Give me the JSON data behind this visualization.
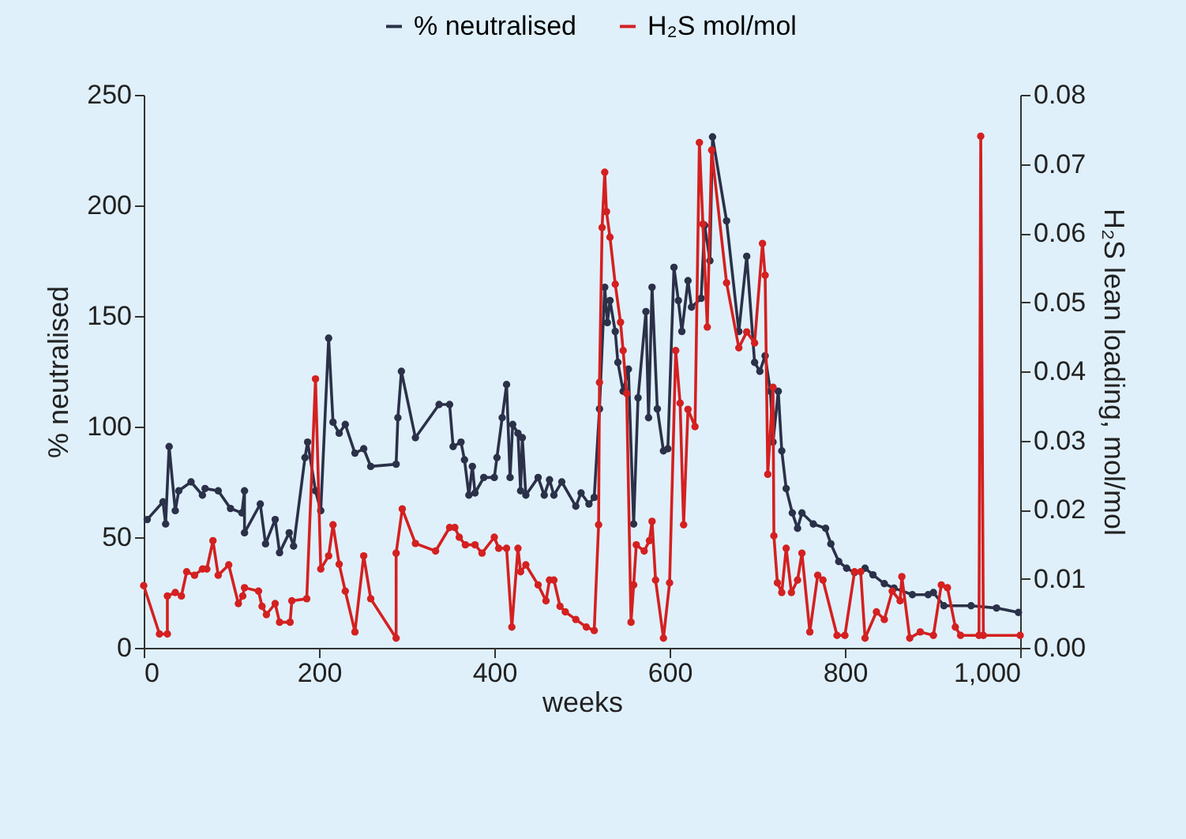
{
  "chart_data": {
    "type": "line",
    "xlabel": "weeks",
    "ylabel": "% neutralised",
    "y2label": "H₂S lean loading, mol/mol",
    "xlim": [
      0,
      1000
    ],
    "xticks": [
      0,
      200,
      400,
      600,
      800,
      {
        "value": 1000,
        "label": "1,000"
      }
    ],
    "ylim": [
      0,
      250
    ],
    "yticks": [
      0,
      50,
      100,
      150,
      200,
      250
    ],
    "y2lim": [
      0,
      0.08
    ],
    "y2ticks": [
      {
        "value": 0,
        "label": "0.00"
      },
      {
        "value": 0.01,
        "label": "0.01"
      },
      {
        "value": 0.02,
        "label": "0.02"
      },
      {
        "value": 0.03,
        "label": "0.03"
      },
      {
        "value": 0.04,
        "label": "0.04"
      },
      {
        "value": 0.05,
        "label": "0.05"
      },
      {
        "value": 0.06,
        "label": "0.06"
      },
      {
        "value": 0.07,
        "label": "0.07"
      },
      {
        "value": 0.08,
        "label": "0.08"
      }
    ],
    "legend": "top",
    "marker": "circle",
    "line_style": "solid",
    "series": [
      {
        "name": "% neutralised",
        "color": "#2b3148",
        "x": [
          4,
          22,
          25,
          29,
          36,
          40,
          54,
          67,
          70,
          85,
          99,
          112,
          115,
          115,
          133,
          139,
          150,
          155,
          166,
          171,
          184,
          187,
          196,
          202,
          211,
          216,
          223,
          230,
          241,
          251,
          259,
          288,
          290,
          294,
          310,
          337,
          349,
          353,
          362,
          366,
          371,
          375,
          378,
          388,
          400,
          403,
          409,
          414,
          418,
          421,
          427,
          430,
          432,
          436,
          450,
          457,
          463,
          468,
          477,
          493,
          499,
          508,
          514,
          520,
          526,
          529,
          532,
          538,
          541,
          547,
          553,
          559,
          564,
          573,
          576,
          580,
          586,
          593,
          598,
          605,
          610,
          614,
          621,
          625,
          636,
          640,
          646,
          649,
          665,
          679,
          688,
          697,
          703,
          709,
          715,
          718,
          724,
          728,
          733,
          740,
          746,
          751,
          764,
          778,
          784,
          793,
          802,
          811,
          823,
          832,
          845,
          856,
          877,
          895,
          901,
          913,
          944,
          973,
          998
        ],
        "values": [
          58,
          66,
          56,
          91,
          62,
          71,
          75,
          69,
          72,
          71,
          63,
          61,
          71,
          52,
          65,
          47,
          58,
          43,
          52,
          46,
          86,
          93,
          71,
          62,
          140,
          102,
          97,
          101,
          88,
          90,
          82,
          83,
          104,
          125,
          95,
          110,
          110,
          91,
          93,
          85,
          69,
          82,
          70,
          77,
          77,
          86,
          104,
          119,
          77,
          101,
          97,
          71,
          95,
          69,
          77,
          69,
          76,
          69,
          75,
          64,
          70,
          65,
          68,
          108,
          163,
          147,
          157,
          143,
          129,
          116,
          126,
          56,
          113,
          152,
          104,
          163,
          108,
          89,
          90,
          172,
          157,
          143,
          166,
          154,
          158,
          191,
          175,
          231,
          193,
          143,
          177,
          129,
          125,
          132,
          116,
          93,
          116,
          89,
          72,
          61,
          54,
          61,
          56,
          54,
          47,
          39,
          36,
          34,
          36,
          33,
          29,
          27,
          24,
          24,
          25,
          19,
          19,
          18,
          16
        ]
      },
      {
        "name": "H₂S mol/mol",
        "color": "#d42020",
        "axis": "y2",
        "x": [
          0,
          18,
          27,
          27,
          36,
          43,
          49,
          58,
          67,
          72,
          79,
          85,
          97,
          108,
          113,
          115,
          131,
          135,
          140,
          150,
          155,
          167,
          169,
          186,
          196,
          202,
          211,
          216,
          223,
          230,
          241,
          251,
          259,
          288,
          288,
          295,
          310,
          333,
          349,
          355,
          360,
          367,
          378,
          386,
          400,
          405,
          414,
          420,
          427,
          430,
          436,
          450,
          459,
          463,
          468,
          475,
          481,
          493,
          505,
          514,
          519,
          520,
          523,
          526,
          528,
          532,
          538,
          544,
          547,
          551,
          556,
          559,
          562,
          571,
          577,
          580,
          584,
          593,
          600,
          607,
          612,
          616,
          621,
          629,
          634,
          638,
          643,
          648,
          665,
          679,
          688,
          697,
          706,
          709,
          712,
          718,
          719,
          723,
          728,
          733,
          739,
          746,
          751,
          760,
          769,
          775,
          791,
          800,
          811,
          818,
          823,
          836,
          845,
          854,
          863,
          865,
          874,
          886,
          901,
          910,
          917,
          926,
          932,
          953,
          955,
          958,
          1000
        ],
        "values": [
          0.009,
          0.002,
          0.002,
          0.0075,
          0.008,
          0.0075,
          0.011,
          0.0105,
          0.0114,
          0.0114,
          0.0155,
          0.0105,
          0.012,
          0.0064,
          0.0075,
          0.0087,
          0.0082,
          0.006,
          0.0048,
          0.0064,
          0.0037,
          0.0037,
          0.0068,
          0.0071,
          0.0389,
          0.0114,
          0.0133,
          0.0178,
          0.0121,
          0.0082,
          0.0023,
          0.0133,
          0.0071,
          0.0014,
          0.0137,
          0.0201,
          0.0151,
          0.014,
          0.0174,
          0.0174,
          0.016,
          0.0149,
          0.0149,
          0.0137,
          0.016,
          0.0144,
          0.0144,
          0.003,
          0.0144,
          0.011,
          0.012,
          0.0091,
          0.0068,
          0.0098,
          0.0098,
          0.006,
          0.0052,
          0.0041,
          0.003,
          0.0025,
          0.0178,
          0.0384,
          0.0608,
          0.0688,
          0.0631,
          0.0594,
          0.0526,
          0.0471,
          0.043,
          0.0368,
          0.0037,
          0.0091,
          0.0149,
          0.014,
          0.0155,
          0.0183,
          0.0098,
          0.0014,
          0.0094,
          0.043,
          0.0354,
          0.0178,
          0.0345,
          0.032,
          0.0731,
          0.0613,
          0.0464,
          0.072,
          0.0528,
          0.0434,
          0.0457,
          0.0441,
          0.0585,
          0.0539,
          0.0251,
          0.0377,
          0.0162,
          0.0094,
          0.008,
          0.0144,
          0.008,
          0.0098,
          0.0137,
          0.0023,
          0.0105,
          0.0098,
          0.0018,
          0.0018,
          0.011,
          0.011,
          0.0014,
          0.0052,
          0.0041,
          0.0082,
          0.0068,
          0.0103,
          0.0014,
          0.0023,
          0.0018,
          0.0091,
          0.0087,
          0.003,
          0.0018,
          0.0018,
          0.074,
          0.0018,
          0.0018
        ]
      }
    ]
  }
}
